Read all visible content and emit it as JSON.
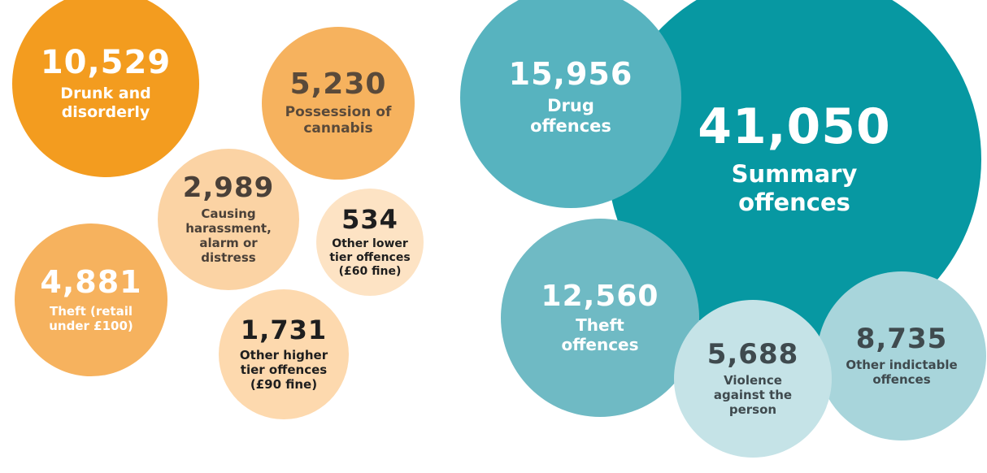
{
  "chart_data": [
    {
      "type": "bubble",
      "bubbles": [
        {
          "value": "10,529",
          "label": "Drunk and\ndisorderly",
          "color": "#f39c1f",
          "text_color": "#ffffff"
        },
        {
          "value": "5,230",
          "label": "Possession of\ncannabis",
          "color": "#f6b25e",
          "text_color": "#5a4a3a"
        },
        {
          "value": "2,989",
          "label": "Causing\nharassment,\nalarm or\ndistress",
          "color": "#fbd3a4",
          "text_color": "#4a4038"
        },
        {
          "value": "534",
          "label": "Other lower\ntier offences\n(£60 fine)",
          "color": "#fde3c4",
          "text_color": "#1e1e1e"
        },
        {
          "value": "4,881",
          "label": "Theft (retail\nunder £100)",
          "color": "#f6b25e",
          "text_color": "#ffffff"
        },
        {
          "value": "1,731",
          "label": "Other higher\ntier offences\n(£90 fine)",
          "color": "#fdd9ae",
          "text_color": "#1e1e1e"
        }
      ]
    },
    {
      "type": "bubble",
      "bubbles": [
        {
          "value": "41,050",
          "label": "Summary\noffences",
          "color": "#0798a2",
          "text_color": "#ffffff"
        },
        {
          "value": "15,956",
          "label": "Drug\noffences",
          "color": "#57b3bf",
          "text_color": "#ffffff"
        },
        {
          "value": "12,560",
          "label": "Theft\noffences",
          "color": "#6fbac4",
          "text_color": "#ffffff"
        },
        {
          "value": "8,735",
          "label": "Other indictable\noffences",
          "color": "#a8d5db",
          "text_color": "#3f4a4e"
        },
        {
          "value": "5,688",
          "label": "Violence\nagainst the\nperson",
          "color": "#c5e3e7",
          "text_color": "#3f4a4e"
        }
      ]
    }
  ]
}
